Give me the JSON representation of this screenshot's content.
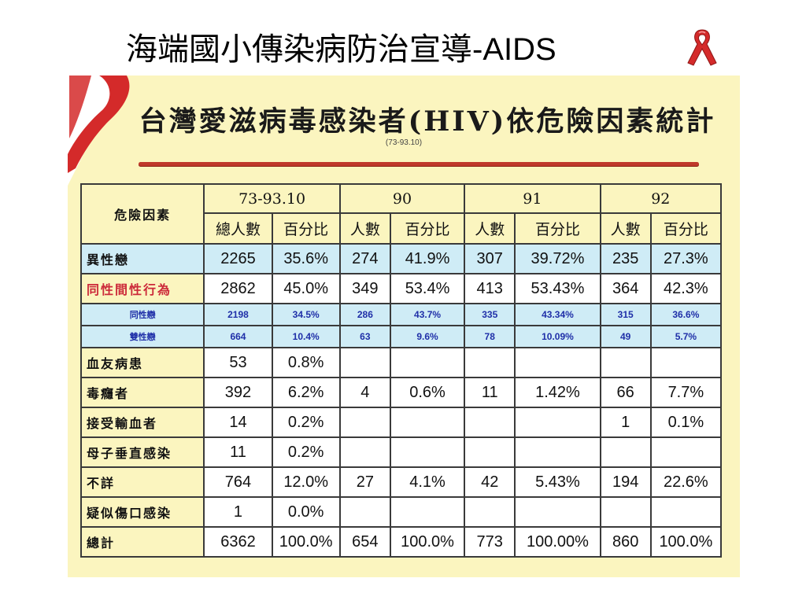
{
  "slide": {
    "title_cn": "海端國小傳染病防治宣導",
    "title_suffix": "-AIDS",
    "ribbon_icon": "red-ribbon-icon",
    "ribbon_color": "#d42a2a"
  },
  "panel": {
    "title": "台灣愛滋病毒感染者(HIV)依危險因素統計",
    "date": "(73-93.10)",
    "background": "#fbf5bf",
    "rule_color": "#c0392b"
  },
  "table": {
    "corner_label": "危險因素",
    "periods": [
      "73-93.10",
      "90",
      "91",
      "92"
    ],
    "sub_headers": {
      "total_count": "總人數",
      "count": "人數",
      "percent": "百分比"
    },
    "rows": [
      {
        "label": "異性戀",
        "values": [
          "2265",
          "35.6%",
          "274",
          "41.9%",
          "307",
          "39.72%",
          "235",
          "27.3%"
        ]
      },
      {
        "label": "同性間性行為",
        "values": [
          "2862",
          "45.0%",
          "349",
          "53.4%",
          "413",
          "53.43%",
          "364",
          "42.3%"
        ]
      },
      {
        "label": "同性戀",
        "values": [
          "2198",
          "34.5%",
          "286",
          "43.7%",
          "335",
          "43.34%",
          "315",
          "36.6%"
        ]
      },
      {
        "label": "雙性戀",
        "values": [
          "664",
          "10.4%",
          "63",
          "9.6%",
          "78",
          "10.09%",
          "49",
          "5.7%"
        ]
      },
      {
        "label": "血友病患",
        "values": [
          "53",
          "0.8%",
          "",
          "",
          "",
          "",
          "",
          ""
        ]
      },
      {
        "label": "毒癮者",
        "values": [
          "392",
          "6.2%",
          "4",
          "0.6%",
          "11",
          "1.42%",
          "66",
          "7.7%"
        ]
      },
      {
        "label": "接受輸血者",
        "values": [
          "14",
          "0.2%",
          "",
          "",
          "",
          "",
          "1",
          "0.1%"
        ]
      },
      {
        "label": "母子垂直感染",
        "values": [
          "11",
          "0.2%",
          "",
          "",
          "",
          "",
          "",
          ""
        ]
      },
      {
        "label": "不詳",
        "values": [
          "764",
          "12.0%",
          "27",
          "4.1%",
          "42",
          "5.43%",
          "194",
          "22.6%"
        ]
      },
      {
        "label": "疑似傷口感染",
        "values": [
          "1",
          "0.0%",
          "",
          "",
          "",
          "",
          "",
          ""
        ]
      },
      {
        "label": "總計",
        "values": [
          "6362",
          "100.0%",
          "654",
          "100.0%",
          "773",
          "100.00%",
          "860",
          "100.0%"
        ]
      }
    ],
    "colors": {
      "header_bg": "#fbf5bf",
      "highlight_row_bg": "#cfecf6",
      "homosexual_label": "#cc2a3a",
      "sub_row_text": "#1f2fa8"
    }
  }
}
